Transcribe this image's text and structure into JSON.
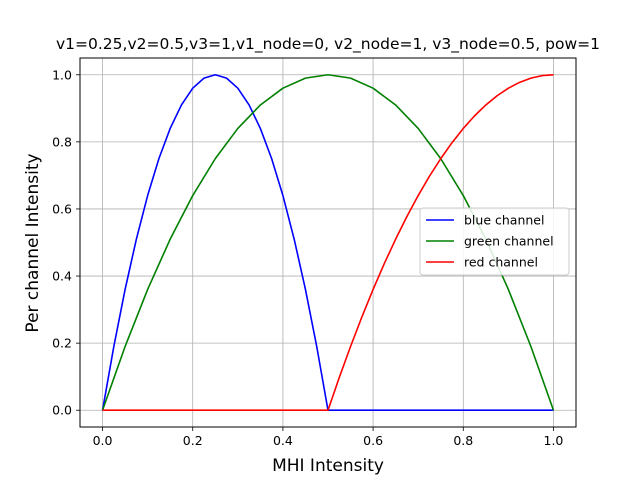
{
  "chart_data": {
    "type": "line",
    "title": "v1=0.25,v2=0.5,v3=1,v1_node=0, v2_node=1, v3_node=0.5, pow=1",
    "xlabel": "MHI Intensity",
    "ylabel": "Per channel Intensity",
    "xlim": [
      -0.05,
      1.05
    ],
    "ylim": [
      -0.05,
      1.05
    ],
    "xticks": [
      "0.0",
      "0.2",
      "0.4",
      "0.6",
      "0.8",
      "1.0"
    ],
    "yticks": [
      "0.0",
      "0.2",
      "0.4",
      "0.6",
      "0.8",
      "1.0"
    ],
    "grid": true,
    "legend_position": "center-right",
    "series": [
      {
        "name": "blue channel",
        "color": "#0000ff",
        "x": [
          0.0,
          0.025,
          0.05,
          0.075,
          0.1,
          0.125,
          0.15,
          0.175,
          0.2,
          0.225,
          0.25,
          0.275,
          0.3,
          0.325,
          0.35,
          0.375,
          0.4,
          0.425,
          0.45,
          0.475,
          0.5,
          0.55,
          0.6,
          0.7,
          0.8,
          0.9,
          1.0
        ],
        "y": [
          0.0,
          0.19,
          0.36,
          0.51,
          0.64,
          0.75,
          0.84,
          0.91,
          0.96,
          0.99,
          1.0,
          0.99,
          0.96,
          0.91,
          0.84,
          0.75,
          0.64,
          0.51,
          0.36,
          0.19,
          0.0,
          0.0,
          0.0,
          0.0,
          0.0,
          0.0,
          0.0
        ]
      },
      {
        "name": "green channel",
        "color": "#008000",
        "x": [
          0.0,
          0.05,
          0.1,
          0.15,
          0.2,
          0.25,
          0.3,
          0.35,
          0.4,
          0.45,
          0.5,
          0.55,
          0.6,
          0.65,
          0.7,
          0.75,
          0.8,
          0.85,
          0.9,
          0.95,
          1.0
        ],
        "y": [
          0.0,
          0.19,
          0.36,
          0.51,
          0.64,
          0.75,
          0.84,
          0.91,
          0.96,
          0.99,
          1.0,
          0.99,
          0.96,
          0.91,
          0.84,
          0.75,
          0.64,
          0.51,
          0.36,
          0.19,
          0.0
        ]
      },
      {
        "name": "red channel",
        "color": "#ff0000",
        "x": [
          0.0,
          0.1,
          0.2,
          0.3,
          0.4,
          0.5,
          0.525,
          0.55,
          0.575,
          0.6,
          0.625,
          0.65,
          0.675,
          0.7,
          0.725,
          0.75,
          0.775,
          0.8,
          0.825,
          0.85,
          0.875,
          0.9,
          0.925,
          0.95,
          0.975,
          1.0
        ],
        "y": [
          0.0,
          0.0,
          0.0,
          0.0,
          0.0,
          0.0,
          0.0975,
          0.19,
          0.2775,
          0.36,
          0.4375,
          0.51,
          0.5775,
          0.64,
          0.6975,
          0.75,
          0.7975,
          0.84,
          0.8775,
          0.91,
          0.9375,
          0.96,
          0.9775,
          0.99,
          0.9975,
          1.0
        ]
      }
    ]
  }
}
